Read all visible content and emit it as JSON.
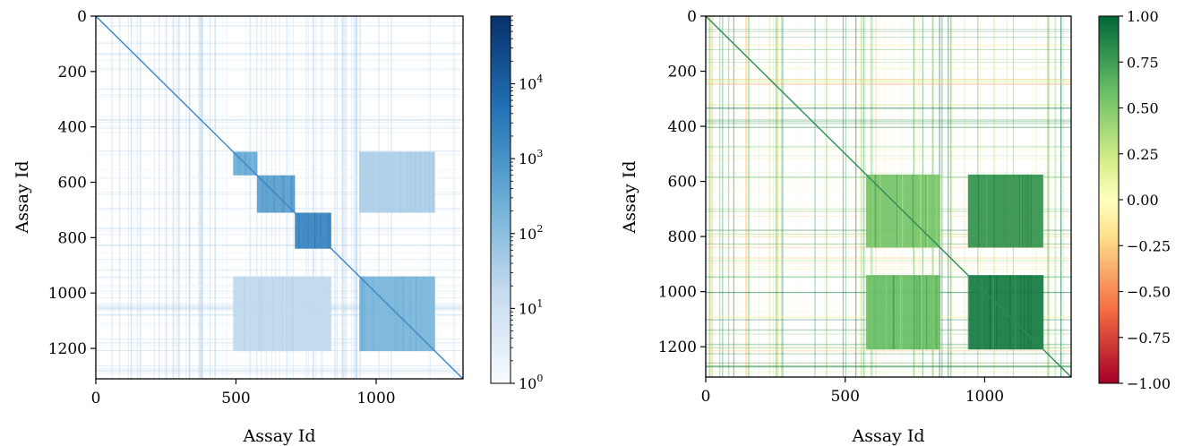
{
  "chart_data": [
    {
      "type": "heatmap",
      "title": "",
      "xlabel": "Assay Id",
      "ylabel": "Assay Id",
      "xlim": [
        0,
        1310
      ],
      "ylim": [
        1310,
        0
      ],
      "xticks": [
        0,
        500,
        1000
      ],
      "yticks": [
        0,
        200,
        400,
        600,
        800,
        1000,
        1200
      ],
      "colorbar": {
        "scale": "log",
        "colormap": "Blues",
        "range": [
          1,
          80000
        ],
        "tick_values": [
          1,
          10,
          100,
          1000,
          10000
        ],
        "ticks": [
          {
            "base": "10",
            "exp": "0"
          },
          {
            "base": "10",
            "exp": "1"
          },
          {
            "base": "10",
            "exp": "2"
          },
          {
            "base": "10",
            "exp": "3"
          },
          {
            "base": "10",
            "exp": "4"
          }
        ]
      },
      "blocks": [
        {
          "x": [
            0,
            1310
          ],
          "y": [
            0,
            1310
          ],
          "value": 3,
          "pattern": "sparse"
        },
        {
          "x": [
            490,
            575
          ],
          "y": [
            490,
            575
          ],
          "value": 300
        },
        {
          "x": [
            575,
            710
          ],
          "y": [
            575,
            710
          ],
          "value": 600
        },
        {
          "x": [
            710,
            840
          ],
          "y": [
            710,
            840
          ],
          "value": 2000
        },
        {
          "x": [
            940,
            1210
          ],
          "y": [
            490,
            710
          ],
          "value": 40
        },
        {
          "x": [
            490,
            840
          ],
          "y": [
            940,
            1210
          ],
          "value": 20
        },
        {
          "x": [
            940,
            1210
          ],
          "y": [
            940,
            1210
          ],
          "value": 200
        }
      ]
    },
    {
      "type": "heatmap",
      "title": "",
      "xlabel": "Assay Id",
      "ylabel": "Assay Id",
      "xlim": [
        0,
        1310
      ],
      "ylim": [
        1310,
        0
      ],
      "xticks": [
        0,
        500,
        1000
      ],
      "yticks": [
        0,
        200,
        400,
        600,
        800,
        1000,
        1200
      ],
      "colorbar": {
        "scale": "linear",
        "colormap": "RdYlGn",
        "range": [
          -1,
          1
        ],
        "tick_values": [
          1.0,
          0.75,
          0.5,
          0.25,
          0.0,
          -0.25,
          -0.5,
          -0.75,
          -1.0
        ],
        "ticks": [
          "1.00",
          "0.75",
          "0.50",
          "0.25",
          "0.00",
          "−0.25",
          "−0.50",
          "−0.75",
          "−1.00"
        ]
      },
      "blocks": [
        {
          "x": [
            0,
            1310
          ],
          "y": [
            0,
            1310
          ],
          "value": 0.1,
          "pattern": "sparse"
        },
        {
          "x": [
            575,
            840
          ],
          "y": [
            575,
            840
          ],
          "value": 0.55
        },
        {
          "x": [
            940,
            1210
          ],
          "y": [
            575,
            840
          ],
          "value": 0.8
        },
        {
          "x": [
            575,
            840
          ],
          "y": [
            940,
            1210
          ],
          "value": 0.6
        },
        {
          "x": [
            940,
            1210
          ],
          "y": [
            940,
            1210
          ],
          "value": 0.92
        }
      ]
    }
  ]
}
